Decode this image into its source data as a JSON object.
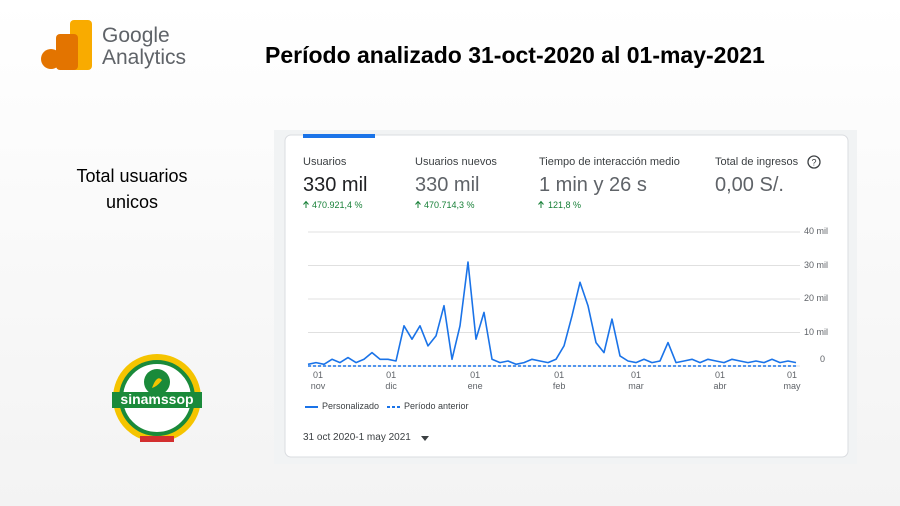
{
  "logo": {
    "brand": "Google",
    "product": "Analytics"
  },
  "title": "Período analizado 31-oct-2020 al 01-may-2021",
  "side_label": "Total usuarios unicos",
  "org_logo": "sinamssop",
  "metrics": [
    {
      "name": "Usuarios",
      "value": "330 mil",
      "change": "470.921,4 %"
    },
    {
      "name": "Usuarios nuevos",
      "value": "330 mil",
      "change": "470.714,3 %"
    },
    {
      "name": "Tiempo de interacción medio",
      "value": "1 min y 26 s",
      "change": "121,8 %"
    },
    {
      "name": "Total de ingresos",
      "value": "0,00 S/."
    }
  ],
  "date_range": "31 oct 2020-1 may 2021",
  "chart_data": {
    "type": "line",
    "series": [
      {
        "name": "Personalizado",
        "color": "#1a73e8",
        "style": "solid",
        "values": [
          0.5,
          1,
          0.5,
          2,
          1,
          2.5,
          1,
          2,
          4,
          2,
          2,
          1.5,
          12,
          8,
          12,
          6,
          9,
          18,
          2,
          12,
          31,
          8,
          16,
          2,
          1,
          1.5,
          0.5,
          1,
          2,
          1.5,
          1,
          2,
          6,
          15,
          25,
          18,
          7,
          4,
          14,
          3,
          1.5,
          1,
          2,
          1,
          1.5,
          7,
          1,
          1.5,
          2,
          1,
          2,
          1.5,
          1,
          2,
          1.5,
          1,
          1.5,
          1,
          2,
          1,
          1.5,
          1
        ]
      },
      {
        "name": "Período anterior",
        "color": "#1a73e8",
        "style": "dashed",
        "values": [
          0,
          0,
          0,
          0,
          0,
          0,
          0,
          0,
          0,
          0,
          0,
          0,
          0,
          0,
          0,
          0,
          0,
          0,
          0,
          0,
          0,
          0,
          0,
          0,
          0,
          0,
          0,
          0,
          0,
          0,
          0,
          0,
          0,
          0,
          0,
          0,
          0,
          0,
          0,
          0,
          0,
          0,
          0,
          0,
          0,
          0,
          0,
          0,
          0,
          0,
          0,
          0,
          0,
          0,
          0,
          0,
          0,
          0,
          0,
          0,
          0,
          0
        ]
      }
    ],
    "xlim": [
      0,
      61
    ],
    "xticks": [
      {
        "value": 1.25,
        "label": "01 nov"
      },
      {
        "value": 10.4,
        "label": "01 dic"
      },
      {
        "value": 20.9,
        "label": "01 ene"
      },
      {
        "value": 31.4,
        "label": "01 feb"
      },
      {
        "value": 41,
        "label": "01 mar"
      },
      {
        "value": 51.5,
        "label": "01 abr"
      },
      {
        "value": 60.5,
        "label": "01 may"
      }
    ],
    "ylim": [
      0,
      40
    ],
    "yticks": [
      0,
      {
        "value": 10,
        "label": "10 mil"
      },
      {
        "value": 20,
        "label": "20 mil"
      },
      {
        "value": 30,
        "label": "30 mil"
      },
      {
        "value": 40,
        "label": "40 mil"
      }
    ],
    "grid": true
  }
}
